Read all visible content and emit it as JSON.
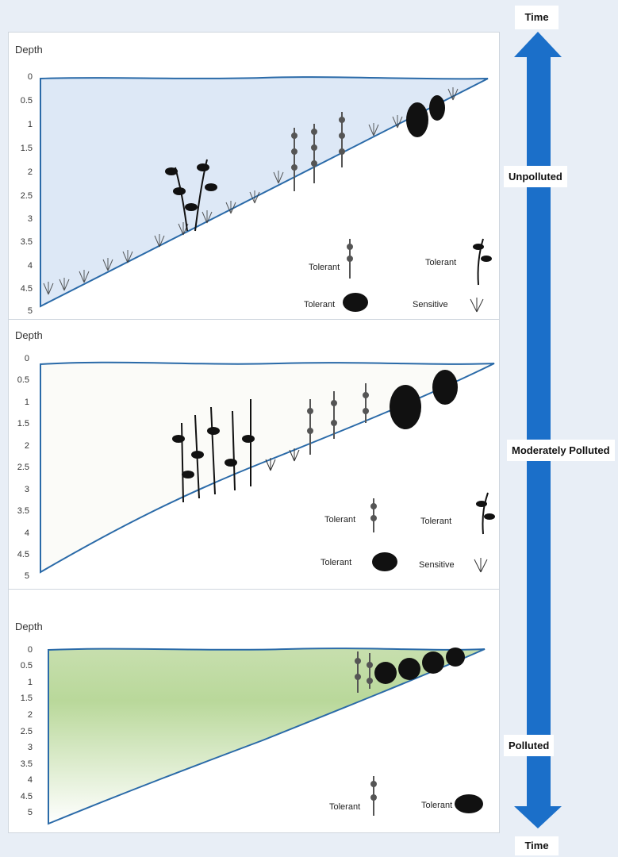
{
  "arrow": {
    "top_label": "Time",
    "bottom_label": "Time",
    "color": "#1b6fc9"
  },
  "stages": [
    {
      "label": "Unpolluted",
      "fill": "#dde8f6"
    },
    {
      "label": "Moderately Polluted",
      "fill": "#fbfbf8"
    },
    {
      "label": "Polluted",
      "fill": "#b9d89a"
    }
  ],
  "axis": {
    "title": "Depth",
    "ticks": [
      "0",
      "0.5",
      "1",
      "1.5",
      "2",
      "2.5",
      "3",
      "3.5",
      "4",
      "4.5",
      "5"
    ]
  },
  "legend": {
    "panel1": [
      "Tolerant",
      "Tolerant",
      "Tolerant",
      "Sensitive"
    ],
    "panel2": [
      "Tolerant",
      "Tolerant",
      "Tolerant",
      "Sensitive"
    ],
    "panel3": [
      "Tolerant",
      "Tolerant"
    ]
  },
  "colors": {
    "outline": "#2a6aa8",
    "plant": "#111111"
  }
}
